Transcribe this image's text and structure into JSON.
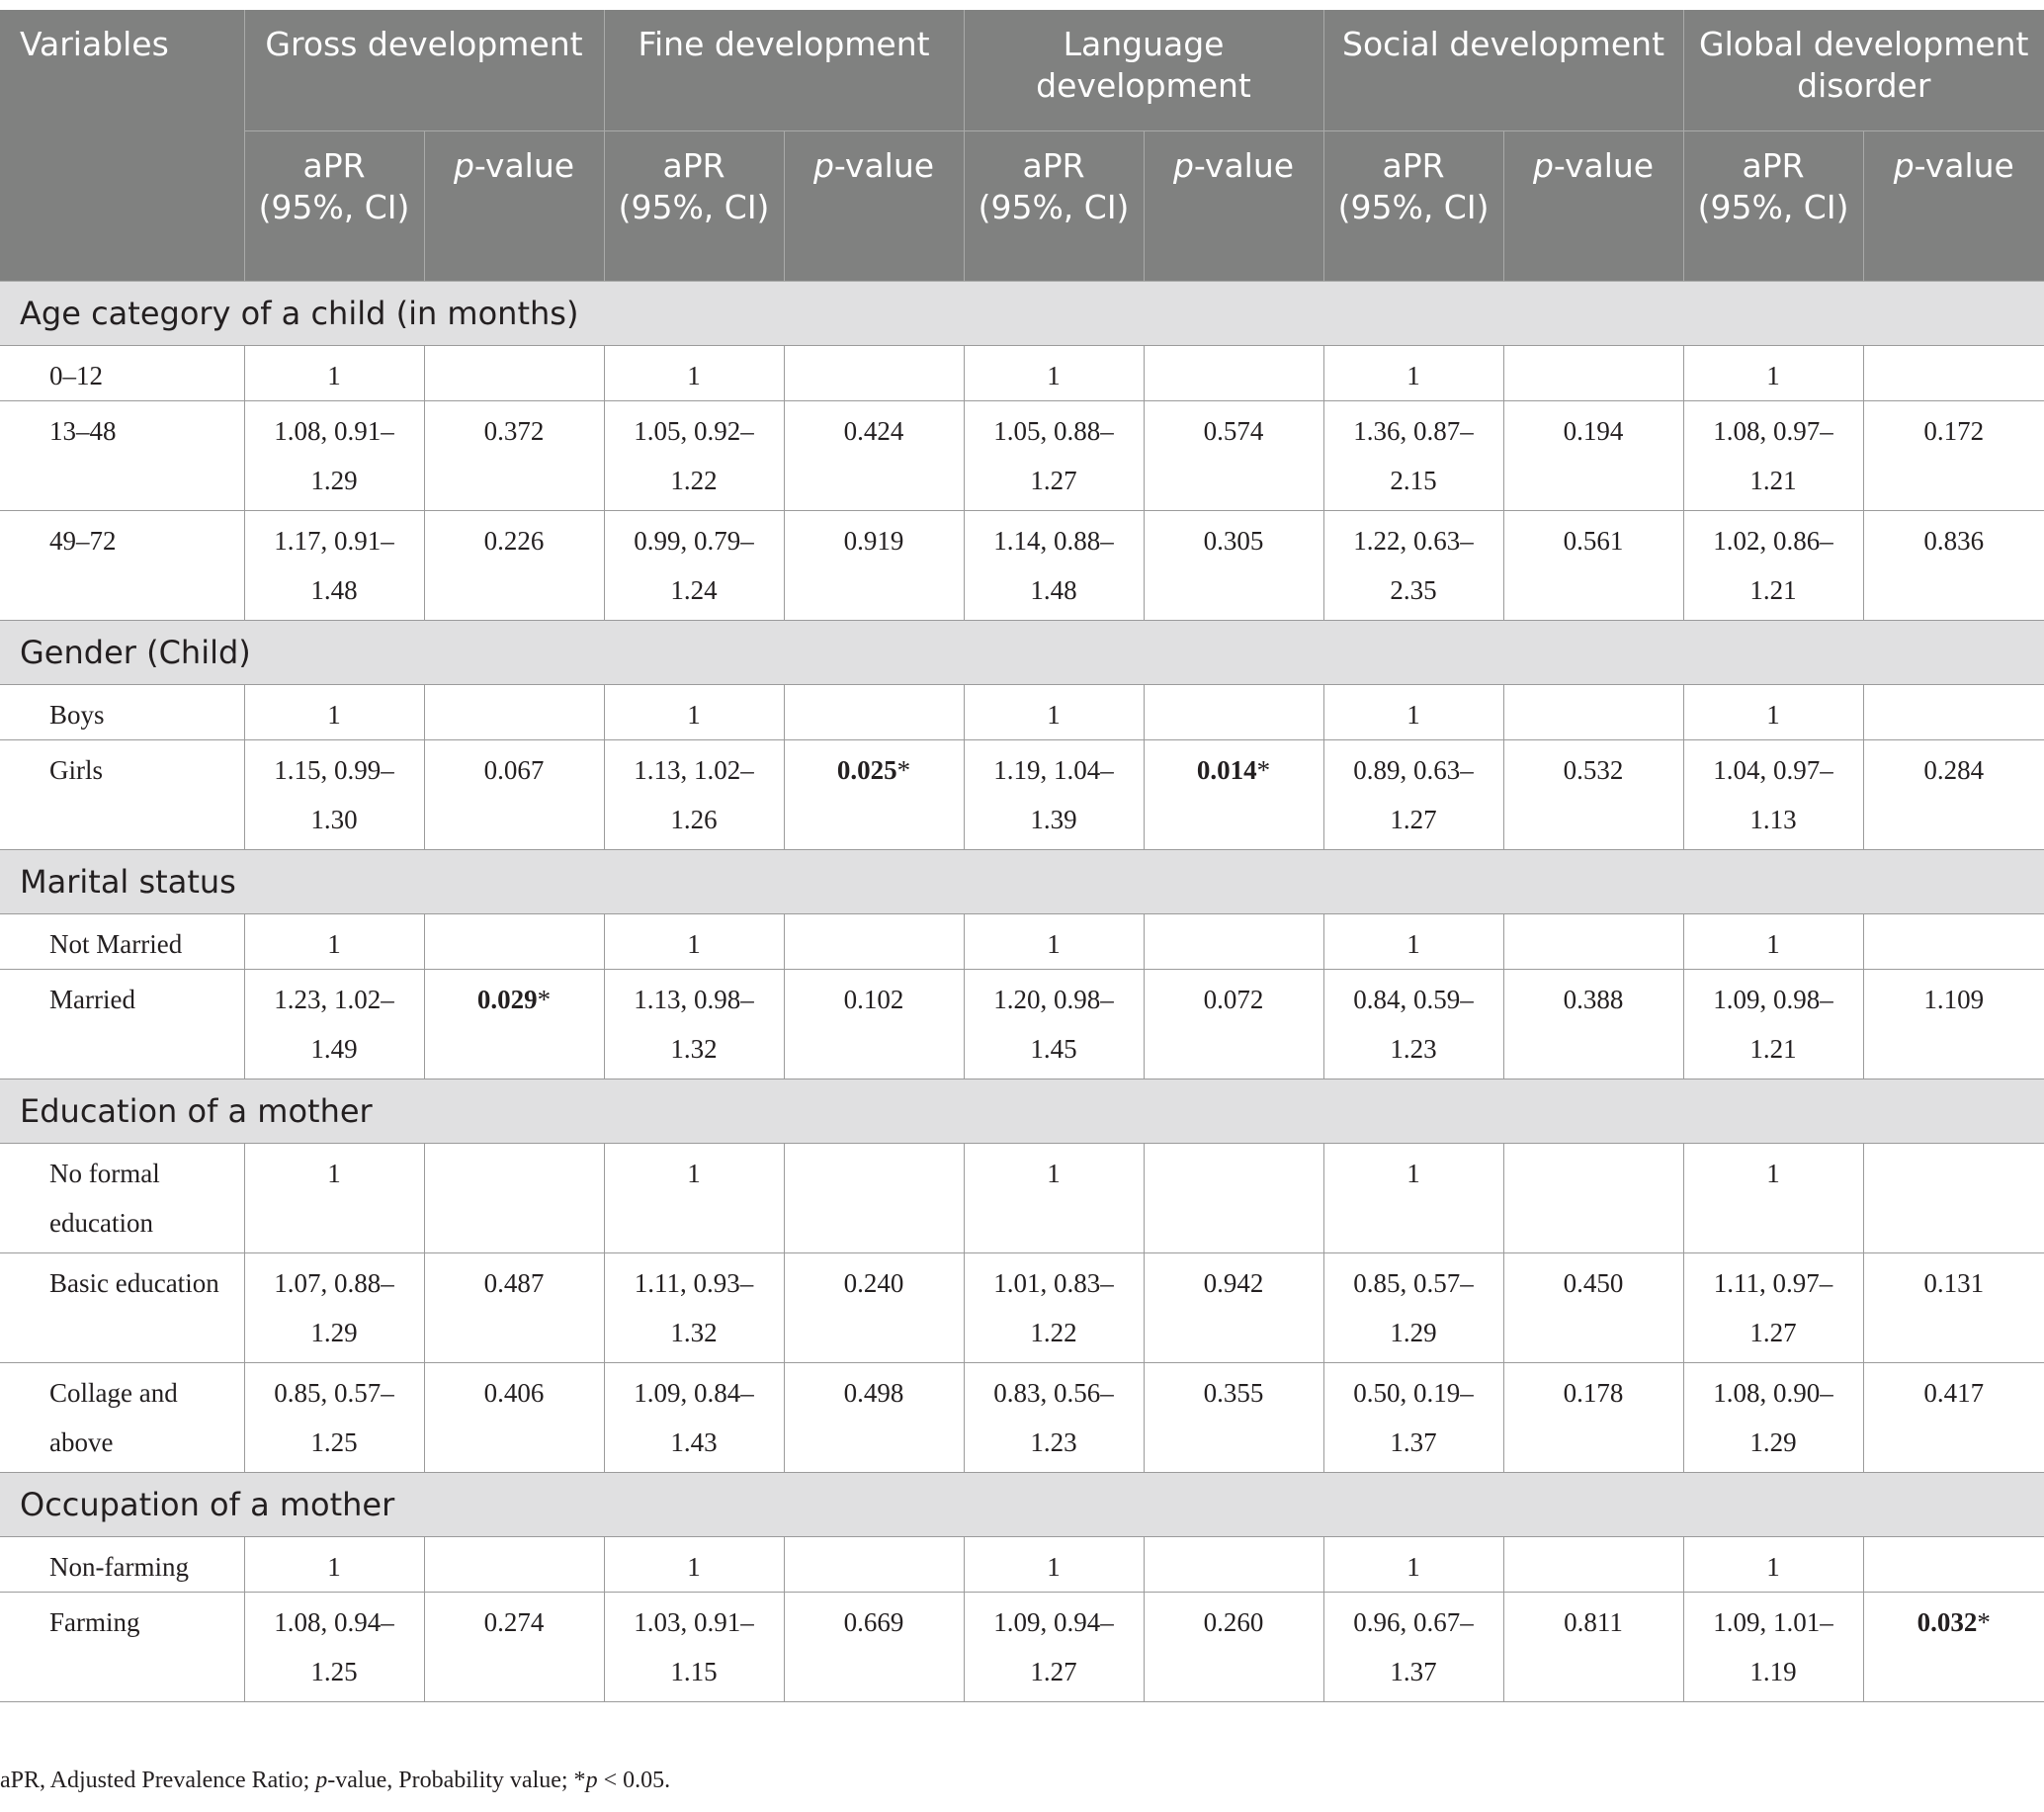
{
  "header": {
    "variables": "Variables",
    "groups": [
      "Gross development",
      "Fine development",
      "Language development",
      "Social development",
      "Global development disorder"
    ],
    "sub_apr": "aPR (95%, CI)",
    "sub_p_italic": "p",
    "sub_p_rest": "-value"
  },
  "sections": [
    {
      "title": "Age category of a child (in months)",
      "rows": [
        {
          "label": "0–12",
          "cells": [
            "1",
            "",
            "1",
            "",
            "1",
            "",
            "1",
            "",
            "1",
            ""
          ]
        },
        {
          "label": "13–48",
          "cells": [
            "1.08, 0.91–1.29",
            "0.372",
            "1.05, 0.92–1.22",
            "0.424",
            "1.05, 0.88–1.27",
            "0.574",
            "1.36, 0.87–2.15",
            "0.194",
            "1.08, 0.97–1.21",
            "0.172"
          ]
        },
        {
          "label": "49–72",
          "cells": [
            "1.17, 0.91–1.48",
            "0.226",
            "0.99, 0.79–1.24",
            "0.919",
            "1.14, 0.88–1.48",
            "0.305",
            "1.22, 0.63–2.35",
            "0.561",
            "1.02, 0.86–1.21",
            "0.836"
          ]
        }
      ]
    },
    {
      "title": "Gender (Child)",
      "rows": [
        {
          "label": "Boys",
          "cells": [
            "1",
            "",
            "1",
            "",
            "1",
            "",
            "1",
            "",
            "1",
            ""
          ]
        },
        {
          "label": "Girls",
          "cells": [
            "1.15, 0.99–1.30",
            "0.067",
            "1.13, 1.02–1.26",
            "0.025*",
            "1.19, 1.04–1.39",
            "0.014*",
            "0.89, 0.63–1.27",
            "0.532",
            "1.04, 0.97–1.13",
            "0.284"
          ]
        }
      ]
    },
    {
      "title": "Marital status",
      "rows": [
        {
          "label": "Not Married",
          "cells": [
            "1",
            "",
            "1",
            "",
            "1",
            "",
            "1",
            "",
            "1",
            ""
          ]
        },
        {
          "label": "Married",
          "cells": [
            "1.23, 1.02–1.49",
            "0.029*",
            "1.13, 0.98–1.32",
            "0.102",
            "1.20, 0.98–1.45",
            "0.072",
            "0.84, 0.59–1.23",
            "0.388",
            "1.09, 0.98–1.21",
            "1.109"
          ]
        }
      ]
    },
    {
      "title": "Education of a mother",
      "rows": [
        {
          "label": "No formal education",
          "cells": [
            "1",
            "",
            "1",
            "",
            "1",
            "",
            "1",
            "",
            "1",
            ""
          ]
        },
        {
          "label": "Basic education",
          "cells": [
            "1.07, 0.88–1.29",
            "0.487",
            "1.11, 0.93–1.32",
            "0.240",
            "1.01, 0.83–1.22",
            "0.942",
            "0.85, 0.57–1.29",
            "0.450",
            "1.11, 0.97–1.27",
            "0.131"
          ]
        },
        {
          "label": "Collage and above",
          "cells": [
            "0.85, 0.57–1.25",
            "0.406",
            "1.09, 0.84–1.43",
            "0.498",
            "0.83, 0.56–1.23",
            "0.355",
            "0.50, 0.19–1.37",
            "0.178",
            "1.08, 0.90–1.29",
            "0.417"
          ]
        }
      ]
    },
    {
      "title": "Occupation of a mother",
      "rows": [
        {
          "label": "Non-farming",
          "cells": [
            "1",
            "",
            "1",
            "",
            "1",
            "",
            "1",
            "",
            "1",
            ""
          ]
        },
        {
          "label": "Farming",
          "cells": [
            "1.08, 0.94–1.25",
            "0.274",
            "1.03, 0.91–1.15",
            "0.669",
            "1.09, 0.94–1.27",
            "0.260",
            "0.96, 0.67–1.37",
            "0.811",
            "1.09, 1.01–1.19",
            "0.032*"
          ]
        }
      ]
    }
  ],
  "footnote": {
    "part1": "aPR, Adjusted Prevalence Ratio; ",
    "p1": "p",
    "part2": "-value, Probability value; *",
    "p2": "p",
    "part3": " < 0.05."
  }
}
